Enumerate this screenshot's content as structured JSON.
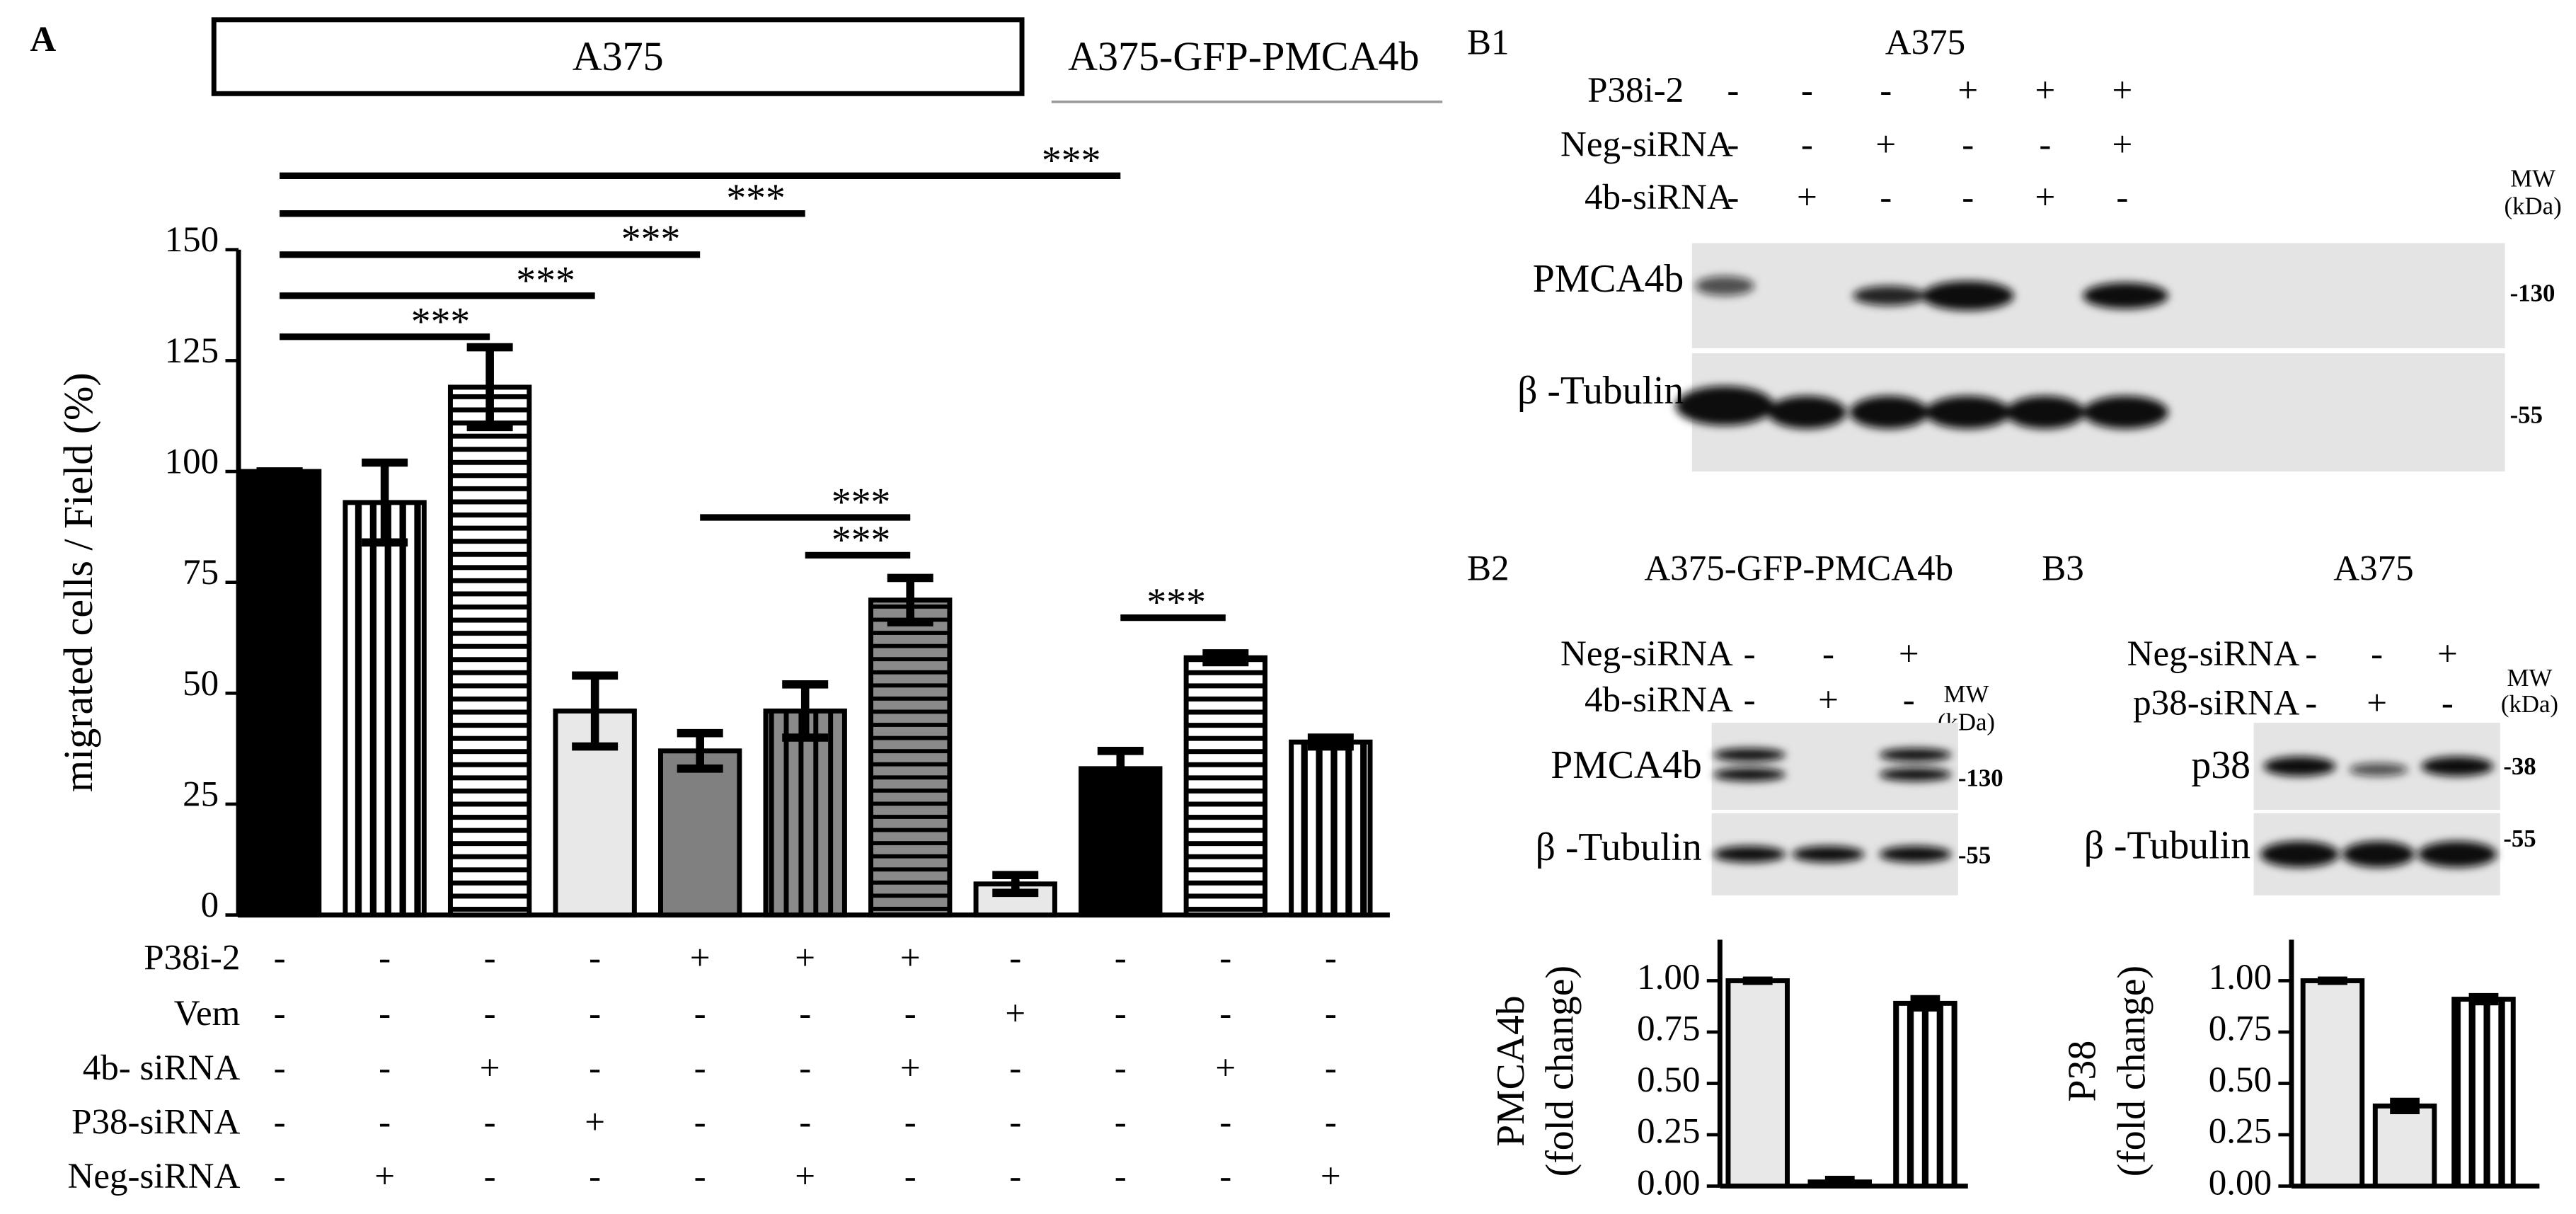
{
  "chart_data": [
    {
      "type": "bar",
      "panel": "A",
      "groups": [
        "A375",
        "A375-GFP-PMCA4b"
      ],
      "ylabel": "migrated cells / Field (%)",
      "ylim": [
        0,
        150
      ],
      "yticks": [
        0,
        25,
        50,
        75,
        100,
        125,
        150
      ],
      "values": [
        100,
        93,
        119,
        46,
        37,
        46,
        71,
        7,
        33,
        58,
        39
      ],
      "errors": [
        0,
        9,
        9,
        8,
        4,
        6,
        5,
        2,
        4,
        1,
        1
      ],
      "fills": [
        "#000000",
        "vertical",
        "horizontal",
        "#e8e8e8",
        "#808080",
        "gray-vertical",
        "gray-horizontal",
        "#e8e8e8",
        "#000000",
        "horizontal",
        "vertical"
      ],
      "conditions": [
        {
          "name": "P38i-2",
          "signs": [
            "-",
            "-",
            "-",
            "-",
            "+",
            "+",
            "+",
            "-",
            "-",
            "-",
            "-"
          ]
        },
        {
          "name": "Vem",
          "signs": [
            "-",
            "-",
            "-",
            "-",
            "-",
            "-",
            "-",
            "+",
            "-",
            "-",
            "-"
          ]
        },
        {
          "name": "4b- siRNA",
          "signs": [
            "-",
            "-",
            "+",
            "-",
            "-",
            "-",
            "+",
            "-",
            "-",
            "+",
            "-"
          ]
        },
        {
          "name": "P38-siRNA",
          "signs": [
            "-",
            "-",
            "-",
            "+",
            "-",
            "-",
            "-",
            "-",
            "-",
            "-",
            "-"
          ]
        },
        {
          "name": "Neg-siRNA",
          "signs": [
            "-",
            "+",
            "-",
            "-",
            "-",
            "+",
            "-",
            "-",
            "-",
            "-",
            "+"
          ]
        }
      ],
      "comparisons": [
        {
          "bars": [
            0,
            8
          ],
          "label": "***"
        },
        {
          "bars": [
            0,
            5
          ],
          "label": "***"
        },
        {
          "bars": [
            0,
            4
          ],
          "label": "***"
        },
        {
          "bars": [
            0,
            3
          ],
          "label": "***"
        },
        {
          "bars": [
            0,
            2
          ],
          "label": "***"
        },
        {
          "bars": [
            4,
            6
          ],
          "label": "***"
        },
        {
          "bars": [
            5,
            6
          ],
          "label": "***"
        },
        {
          "bars": [
            8,
            9
          ],
          "label": "***"
        }
      ]
    },
    {
      "type": "bar",
      "ylabel": [
        "PMCA4b",
        "(fold change)"
      ],
      "ylim": [
        0,
        1.2
      ],
      "yticks": [
        {
          "value": 0,
          "label": "0.00"
        },
        {
          "value": 0.25,
          "label": "0.25"
        },
        {
          "value": 0.5,
          "label": "0.50"
        },
        {
          "value": 0.75,
          "label": "0.75"
        },
        {
          "value": 1,
          "label": "1.00"
        }
      ],
      "values": [
        1.0,
        0.02,
        0.89
      ],
      "errors": [
        0,
        0.01,
        0.02
      ],
      "fills": [
        "#e8e8e8",
        "#e8e8e8",
        "vertical"
      ]
    },
    {
      "type": "bar",
      "ylabel": [
        "P38",
        "(fold change)"
      ],
      "ylim": [
        0,
        1.2
      ],
      "yticks": [
        {
          "value": 0,
          "label": "0.00"
        },
        {
          "value": 0.25,
          "label": "0.25"
        },
        {
          "value": 0.5,
          "label": "0.50"
        },
        {
          "value": 0.75,
          "label": "0.75"
        },
        {
          "value": 1,
          "label": "1.00"
        }
      ],
      "values": [
        1.0,
        0.39,
        0.91
      ],
      "errors": [
        0,
        0.02,
        0.01
      ],
      "fills": [
        "#e8e8e8",
        "#e8e8e8",
        "vertical"
      ]
    }
  ],
  "blots": [
    {
      "panel": "B1",
      "title": "A375",
      "conditions": [
        {
          "name": "P38i-2",
          "signs": [
            "-",
            "-",
            "-",
            "+",
            "+",
            "+"
          ]
        },
        {
          "name": "Neg-siRNA",
          "signs": [
            "-",
            "-",
            "+",
            "-",
            "-",
            "+"
          ]
        },
        {
          "name": "4b-siRNA",
          "signs": [
            "-",
            "+",
            "-",
            "-",
            "+",
            "-"
          ]
        }
      ],
      "mw": [
        "MW",
        "(kDa)"
      ],
      "rows": [
        {
          "name": "PMCA4b",
          "marker": "-130"
        },
        {
          "name": "β -Tubulin",
          "marker": "-55"
        }
      ]
    },
    {
      "panel": "B2",
      "title": "A375-GFP-PMCA4b",
      "conditions": [
        {
          "name": "Neg-siRNA",
          "signs": [
            "-",
            "-",
            "+"
          ]
        },
        {
          "name": "4b-siRNA",
          "signs": [
            "-",
            "+",
            "-"
          ]
        }
      ],
      "mw": [
        "MW",
        "(kDa)"
      ],
      "rows": [
        {
          "name": "PMCA4b",
          "marker": "-130"
        },
        {
          "name": "β -Tubulin",
          "marker": "-55"
        }
      ]
    },
    {
      "panel": "B3",
      "title": "A375",
      "conditions": [
        {
          "name": "Neg-siRNA",
          "signs": [
            "-",
            "-",
            "+"
          ]
        },
        {
          "name": "p38-siRNA",
          "signs": [
            "-",
            "+",
            "-"
          ]
        }
      ],
      "mw": [
        "MW",
        "(kDa)"
      ],
      "rows": [
        {
          "name": "p38",
          "marker": "-38"
        },
        {
          "name": "β -Tubulin",
          "marker": "-55"
        }
      ]
    }
  ]
}
